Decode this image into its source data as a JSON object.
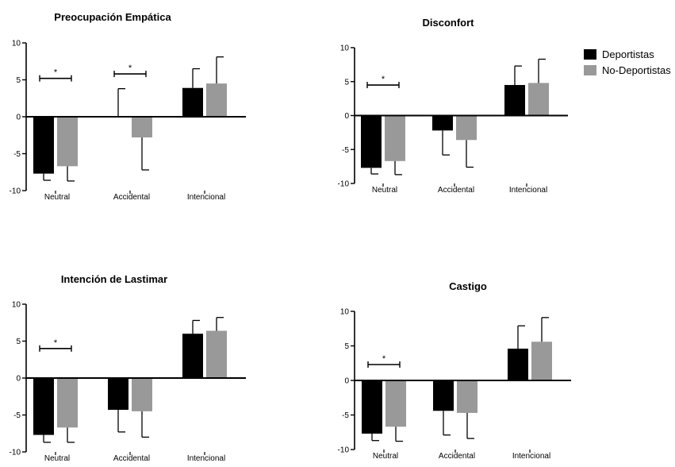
{
  "colors": {
    "deportistas": "#000000",
    "no_deportistas": "#999999",
    "axis": "#000000"
  },
  "legend": [
    {
      "label": "Deportistas",
      "color": "#000000"
    },
    {
      "label": "No-Deportistas",
      "color": "#999999"
    }
  ],
  "chart_data": [
    {
      "type": "bar",
      "title": "Preocupación Empática",
      "categories": [
        "Neutral",
        "Accidental",
        "Intencional"
      ],
      "ylim": [
        -10,
        10
      ],
      "yticks": [
        "10",
        "5",
        "0",
        "-5",
        "-10"
      ],
      "series": [
        {
          "name": "Deportistas",
          "values": [
            -7.7,
            0,
            3.9
          ],
          "error": [
            0.9,
            3.8,
            2.6
          ]
        },
        {
          "name": "No-Deportistas",
          "values": [
            -6.7,
            -2.8,
            4.5
          ],
          "error": [
            2.0,
            4.4,
            3.6
          ]
        }
      ],
      "annotations": [
        {
          "text": "*",
          "category": "Neutral",
          "y": 5.2
        },
        {
          "text": "*",
          "category": "Accidental",
          "y": 5.8
        }
      ]
    },
    {
      "type": "bar",
      "title": "Disconfort",
      "categories": [
        "Neutral",
        "Accidental",
        "Intencional"
      ],
      "ylim": [
        -10,
        10
      ],
      "yticks": [
        "10",
        "5",
        "0",
        "-5",
        "-10"
      ],
      "series": [
        {
          "name": "Deportistas",
          "values": [
            -7.7,
            -2.2,
            4.5
          ],
          "error": [
            0.9,
            3.6,
            2.8
          ]
        },
        {
          "name": "No-Deportistas",
          "values": [
            -6.7,
            -3.6,
            4.8
          ],
          "error": [
            2.0,
            4.0,
            3.5
          ]
        }
      ],
      "annotations": [
        {
          "text": "*",
          "category": "Neutral",
          "y": 4.5
        }
      ]
    },
    {
      "type": "bar",
      "title": "Intención de Lastimar",
      "categories": [
        "Neutral",
        "Accidental",
        "Intencional"
      ],
      "ylim": [
        -10,
        10
      ],
      "yticks": [
        "10",
        "5",
        "0",
        "-5",
        "-10"
      ],
      "series": [
        {
          "name": "Deportistas",
          "values": [
            -7.7,
            -4.3,
            6.0
          ],
          "error": [
            1.0,
            3.0,
            1.8
          ]
        },
        {
          "name": "No-Deportistas",
          "values": [
            -6.7,
            -4.5,
            6.4
          ],
          "error": [
            2.0,
            3.5,
            1.8
          ]
        }
      ],
      "annotations": [
        {
          "text": "*",
          "category": "Neutral",
          "y": 4.0
        }
      ]
    },
    {
      "type": "bar",
      "title": "Castigo",
      "categories": [
        "Neutral",
        "Accidental",
        "Intencional"
      ],
      "ylim": [
        -10,
        10
      ],
      "yticks": [
        "10",
        "5",
        "0",
        "-5",
        "-10"
      ],
      "series": [
        {
          "name": "Deportistas",
          "values": [
            -7.7,
            -4.4,
            4.6
          ],
          "error": [
            1.0,
            3.5,
            3.3
          ]
        },
        {
          "name": "No-Deportistas",
          "values": [
            -6.7,
            -4.7,
            5.6
          ],
          "error": [
            2.1,
            3.7,
            3.5
          ]
        }
      ],
      "annotations": [
        {
          "text": "*",
          "category": "Neutral",
          "y": 2.3
        }
      ]
    }
  ]
}
